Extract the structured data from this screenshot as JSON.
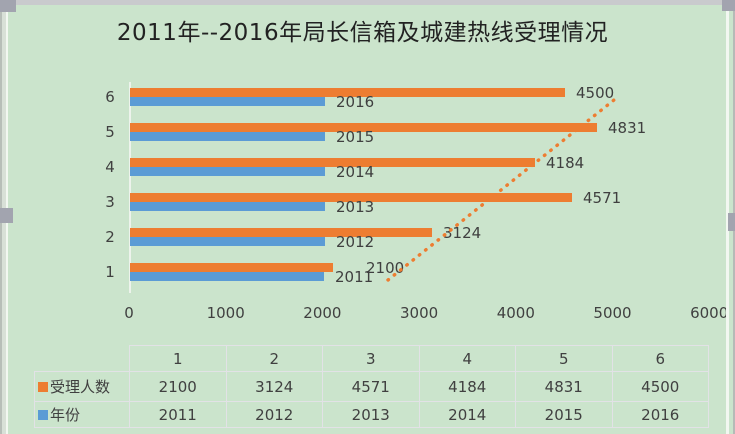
{
  "window": {
    "state": "chart-object-selected",
    "selection_handle_color": "#a2a4af"
  },
  "chart": {
    "title": "2011年--2016年局长信箱及城建热线受理情况",
    "background": "#cbe4cc",
    "text_color": "#404040"
  },
  "chart_data": {
    "type": "bar",
    "orientation": "horizontal",
    "title": "2011年--2016年局长信箱及城建热线受理情况",
    "categories": [
      "1",
      "2",
      "3",
      "4",
      "5",
      "6"
    ],
    "series": [
      {
        "name": "受理人数",
        "color": "#ED7D31",
        "values": [
          2100,
          3124,
          4571,
          4184,
          4831,
          4500
        ],
        "label_dx": [
          22,
          0,
          0,
          0,
          0,
          0
        ]
      },
      {
        "name": "年份",
        "color": "#5B9BD5",
        "values": [
          2011,
          2012,
          2013,
          2014,
          2015,
          2016
        ],
        "label_dx": [
          0,
          0,
          0,
          0,
          0,
          0
        ]
      }
    ],
    "x_axis": {
      "min": 0,
      "max": 6000,
      "tick_step": 1000,
      "ticks": [
        "0",
        "1000",
        "2000",
        "3000",
        "4000",
        "5000",
        "6000"
      ]
    },
    "data_labels": true,
    "grid": false,
    "legend_position": "data-table",
    "trendline": {
      "on_series": "受理人数",
      "style": "dotted",
      "color": "#ED7D31"
    },
    "data_table": {
      "show": true,
      "corner_label": "",
      "legend_keys": true
    }
  }
}
